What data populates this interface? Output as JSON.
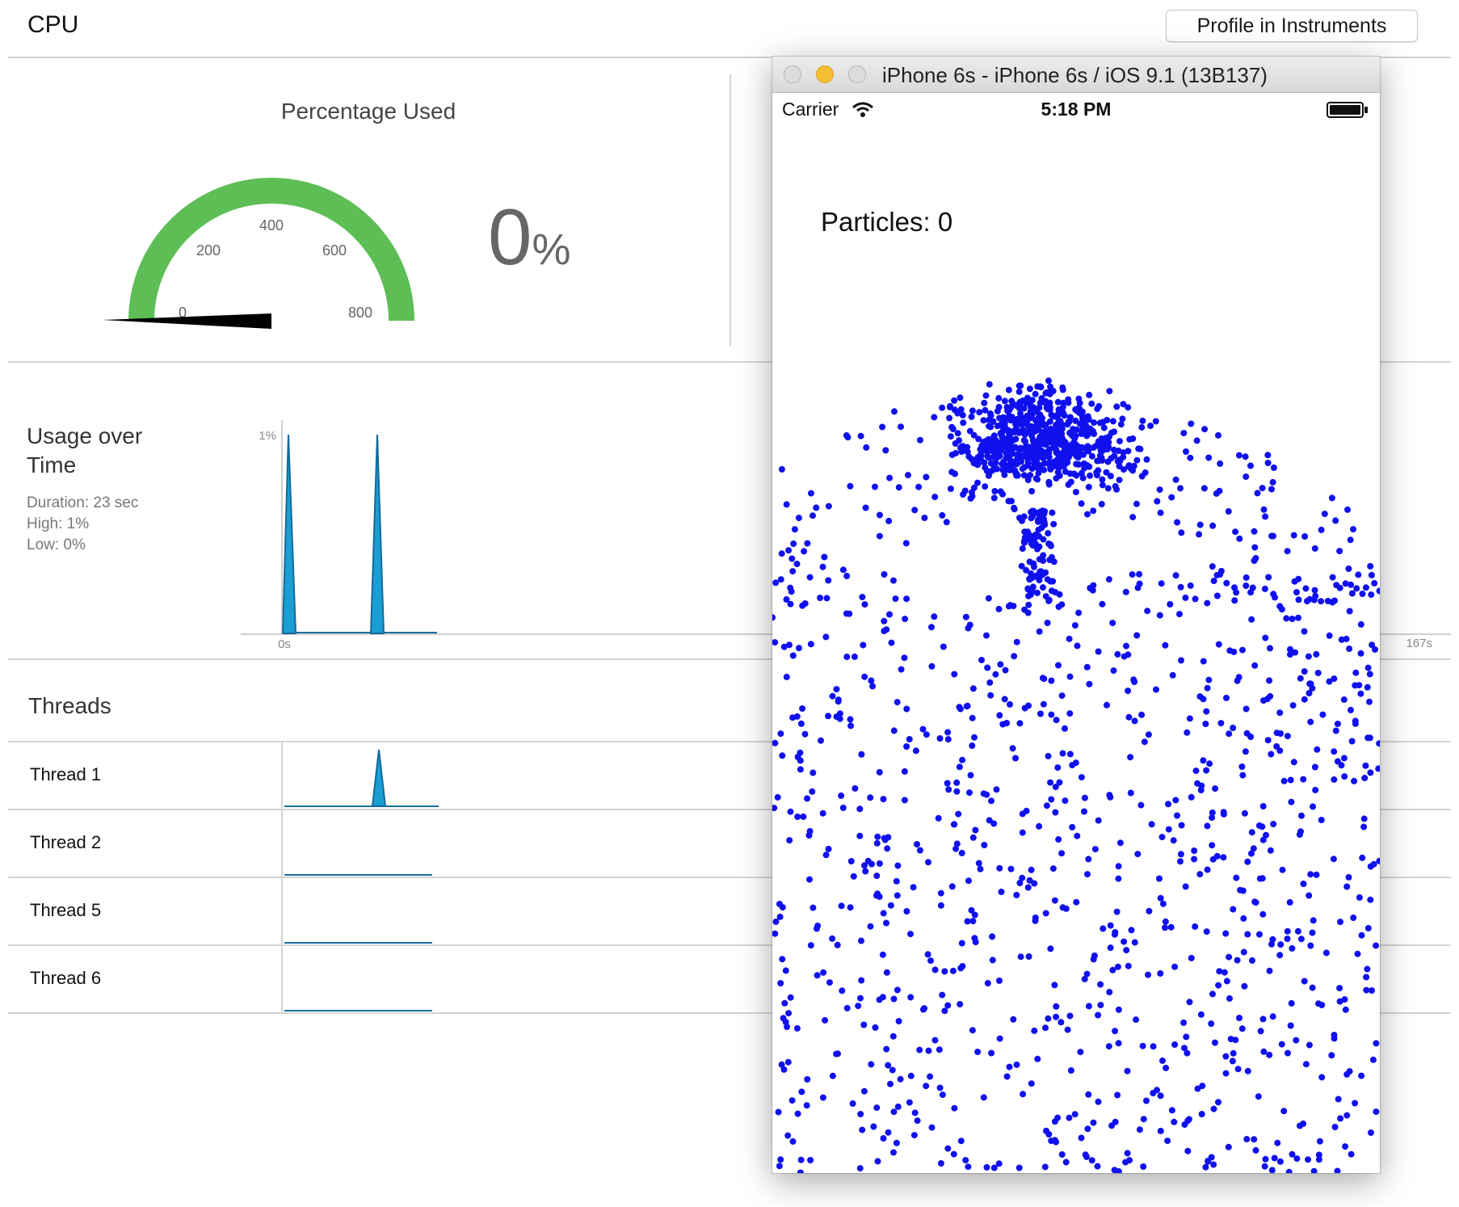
{
  "header": {
    "title": "CPU",
    "profile_button": "Profile in Instruments"
  },
  "gauge": {
    "title": "Percentage Used",
    "ticks": [
      "0",
      "200",
      "400",
      "600",
      "800"
    ],
    "value_number": "0",
    "value_unit": "%",
    "fill_fraction": 0.0,
    "arc_color": "#5dbe55"
  },
  "usage": {
    "title_line1": "Usage over",
    "title_line2": "Time",
    "duration": "Duration: 23 sec",
    "high": "High: 1%",
    "low": "Low: 0%",
    "y_tick": "1%",
    "x_start": "0s",
    "x_end": "167s",
    "spike_color": "#1b8ec4"
  },
  "threads": {
    "title": "Threads",
    "rows": [
      {
        "label": "Thread 1",
        "spike": true
      },
      {
        "label": "Thread 2",
        "spike": false
      },
      {
        "label": "Thread 5",
        "spike": false
      },
      {
        "label": "Thread 6",
        "spike": false
      }
    ]
  },
  "simulator": {
    "window_title": "iPhone 6s - iPhone 6s / iOS 9.1 (13B137)",
    "carrier": "Carrier",
    "time": "5:18 PM",
    "particles_label": "Particles: 0",
    "particle_color": "#1010ee",
    "icons": [
      "close-button-icon",
      "minimize-button-icon",
      "zoom-button-icon",
      "wifi-icon",
      "battery-icon"
    ]
  }
}
